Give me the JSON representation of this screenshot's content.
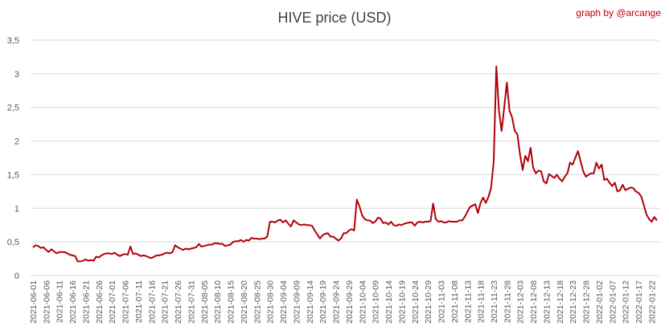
{
  "chart_data": {
    "type": "line",
    "title": "HIVE price (USD)",
    "credit": "graph by @arcange",
    "xlabel": "",
    "ylabel": "",
    "ylim": [
      0,
      3.5
    ],
    "y_ticks": [
      "0",
      "0,5",
      "1",
      "1,5",
      "2",
      "2,5",
      "3",
      "3,5"
    ],
    "grid": true,
    "legend": "none",
    "colors": {
      "line": "#b0000a",
      "grid": "#d9d9d9",
      "axis_text": "#595959",
      "credit": "#c00000"
    },
    "x_tick_labels": [
      "2021-06-01",
      "2021-06-06",
      "2021-06-11",
      "2021-06-16",
      "2021-06-21",
      "2021-06-26",
      "2021-07-01",
      "2021-07-06",
      "2021-07-11",
      "2021-07-16",
      "2021-07-21",
      "2021-07-26",
      "2021-07-31",
      "2021-08-05",
      "2021-08-10",
      "2021-08-15",
      "2021-08-20",
      "2021-08-25",
      "2021-08-30",
      "2021-09-04",
      "2021-09-09",
      "2021-09-14",
      "2021-09-19",
      "2021-09-24",
      "2021-09-29",
      "2021-10-04",
      "2021-10-09",
      "2021-10-14",
      "2021-10-19",
      "2021-10-24",
      "2021-10-29",
      "2021-11-03",
      "2021-11-08",
      "2021-11-13",
      "2021-11-18",
      "2021-11-23",
      "2021-11-28",
      "2021-12-03",
      "2021-12-08",
      "2021-12-13",
      "2021-12-18",
      "2021-12-23",
      "2021-12-28",
      "2022-01-02",
      "2022-01-07",
      "2022-01-12",
      "2022-01-17",
      "2022-01-22"
    ],
    "series": [
      {
        "name": "",
        "x_start": "2021-06-01",
        "x_step_days": 1,
        "values": [
          0.42,
          0.45,
          0.44,
          0.41,
          0.42,
          0.38,
          0.35,
          0.39,
          0.36,
          0.33,
          0.35,
          0.35,
          0.35,
          0.33,
          0.31,
          0.3,
          0.29,
          0.21,
          0.21,
          0.22,
          0.24,
          0.22,
          0.23,
          0.22,
          0.28,
          0.27,
          0.3,
          0.32,
          0.33,
          0.33,
          0.32,
          0.34,
          0.31,
          0.29,
          0.31,
          0.32,
          0.31,
          0.43,
          0.32,
          0.33,
          0.31,
          0.29,
          0.3,
          0.29,
          0.27,
          0.26,
          0.28,
          0.3,
          0.3,
          0.31,
          0.33,
          0.34,
          0.33,
          0.35,
          0.45,
          0.42,
          0.4,
          0.38,
          0.4,
          0.39,
          0.4,
          0.41,
          0.42,
          0.47,
          0.43,
          0.44,
          0.45,
          0.46,
          0.46,
          0.48,
          0.48,
          0.47,
          0.47,
          0.44,
          0.45,
          0.46,
          0.5,
          0.51,
          0.51,
          0.53,
          0.5,
          0.53,
          0.52,
          0.56,
          0.55,
          0.55,
          0.54,
          0.55,
          0.55,
          0.58,
          0.8,
          0.8,
          0.79,
          0.82,
          0.83,
          0.79,
          0.82,
          0.77,
          0.73,
          0.82,
          0.79,
          0.76,
          0.75,
          0.76,
          0.75,
          0.75,
          0.74,
          0.67,
          0.61,
          0.55,
          0.6,
          0.62,
          0.63,
          0.58,
          0.58,
          0.55,
          0.52,
          0.55,
          0.63,
          0.63,
          0.67,
          0.69,
          0.67,
          1.13,
          1.03,
          0.9,
          0.84,
          0.82,
          0.82,
          0.78,
          0.8,
          0.86,
          0.85,
          0.78,
          0.79,
          0.76,
          0.8,
          0.75,
          0.74,
          0.76,
          0.75,
          0.77,
          0.78,
          0.79,
          0.79,
          0.74,
          0.79,
          0.8,
          0.79,
          0.8,
          0.8,
          0.81,
          1.07,
          0.84,
          0.8,
          0.81,
          0.79,
          0.79,
          0.81,
          0.8,
          0.8,
          0.8,
          0.82,
          0.82,
          0.87,
          0.95,
          1.02,
          1.04,
          1.06,
          0.93,
          1.08,
          1.16,
          1.08,
          1.17,
          1.3,
          1.7,
          3.11,
          2.45,
          2.15,
          2.5,
          2.87,
          2.45,
          2.35,
          2.15,
          2.1,
          1.8,
          1.57,
          1.78,
          1.7,
          1.9,
          1.6,
          1.52,
          1.56,
          1.55,
          1.4,
          1.37,
          1.51,
          1.48,
          1.45,
          1.5,
          1.44,
          1.4,
          1.47,
          1.52,
          1.68,
          1.65,
          1.75,
          1.85,
          1.7,
          1.55,
          1.47,
          1.5,
          1.52,
          1.52,
          1.68,
          1.59,
          1.65,
          1.42,
          1.44,
          1.38,
          1.33,
          1.38,
          1.25,
          1.27,
          1.35,
          1.27,
          1.29,
          1.31,
          1.3,
          1.25,
          1.23,
          1.18,
          1.05,
          0.91,
          0.84,
          0.8,
          0.87,
          0.82
        ]
      }
    ]
  }
}
